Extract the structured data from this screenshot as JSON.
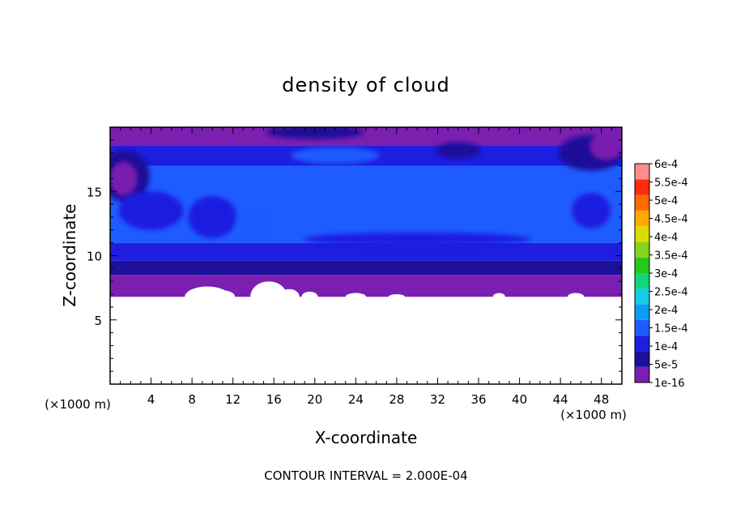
{
  "chart_data": {
    "type": "heatmap",
    "title": "density of cloud",
    "xlabel": "X-coordinate",
    "ylabel": "Z-coordinate",
    "x_unit_label": "(×1000 m)",
    "x_unit_label_right": "(×1000 m)",
    "xlim": [
      0,
      50
    ],
    "ylim": [
      0,
      20
    ],
    "x_ticks": [
      4,
      8,
      12,
      16,
      20,
      24,
      28,
      32,
      36,
      40,
      44,
      48
    ],
    "y_ticks": [
      5,
      10,
      15
    ],
    "footer": "CONTOUR INTERVAL = 2.000E-04",
    "legend": {
      "placement": "right",
      "levels": [
        "1e-16",
        "5e-5",
        "1e-4",
        "1.5e-4",
        "2e-4",
        "2.5e-4",
        "3e-4",
        "3.5e-4",
        "4e-4",
        "4.5e-4",
        "5e-4",
        "5.5e-4",
        "6e-4"
      ],
      "colors": [
        "#7a1fb0",
        "#1c0f9a",
        "#1e1ee0",
        "#1f5cff",
        "#0c9df2",
        "#17cce4",
        "#10d87a",
        "#28c81e",
        "#88d41a",
        "#dcdc00",
        "#ffaa00",
        "#ff6a00",
        "#ff2a10",
        "#ff8c8c"
      ]
    },
    "field": {
      "cloud_base_z": 6.8,
      "layers": [
        {
          "z_range": [
            6.8,
            8.5
          ],
          "level": "1e-16"
        },
        {
          "z_range": [
            8.5,
            9.6
          ],
          "level": "5e-5"
        },
        {
          "z_range": [
            9.6,
            11.0
          ],
          "level": "1e-4"
        },
        {
          "z_range": [
            11.0,
            17.0
          ],
          "level": "1.5e-4"
        },
        {
          "z_range": [
            17.0,
            18.6
          ],
          "level": "1e-4"
        },
        {
          "z_range": [
            18.6,
            20.0
          ],
          "level": "1e-16"
        }
      ]
    }
  }
}
